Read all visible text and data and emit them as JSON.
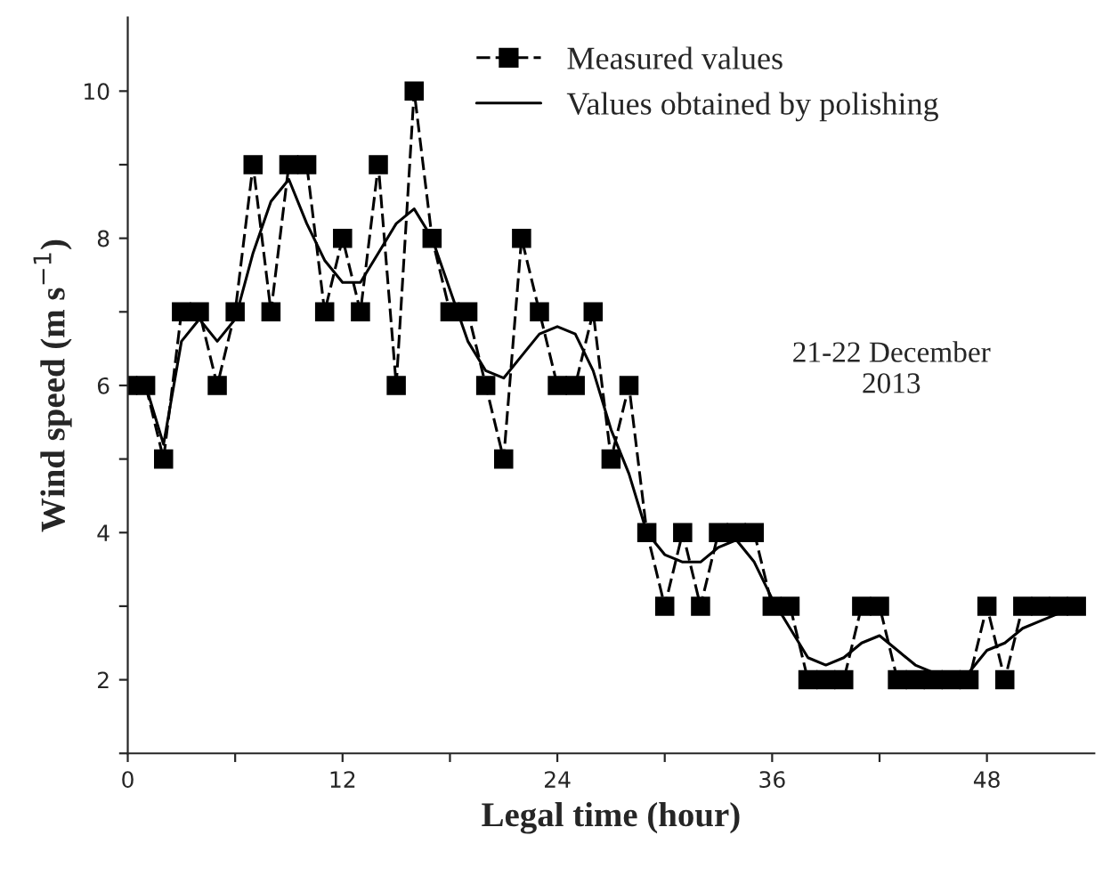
{
  "chart_data": {
    "type": "line",
    "xlabel": "Legal time (hour)",
    "ylabel": "Wind speed (m s$^{−1}$)",
    "xlim": [
      0,
      54
    ],
    "ylim": [
      1,
      11
    ],
    "xticks": [
      0,
      {
        "value": 6,
        "label": null
      },
      12,
      {
        "value": 18,
        "label": null
      },
      24,
      {
        "value": 30,
        "label": null
      },
      36,
      {
        "value": 42,
        "label": null
      },
      48
    ],
    "yticks": [
      {
        "value": 1,
        "label": null
      },
      2,
      {
        "value": 3,
        "label": null
      },
      4,
      {
        "value": 5,
        "label": null
      },
      6,
      {
        "value": 7,
        "label": null
      },
      8,
      {
        "value": 9,
        "label": null
      },
      10
    ],
    "x": [
      0,
      1,
      2,
      3,
      4,
      5,
      6,
      7,
      8,
      9,
      10,
      11,
      12,
      13,
      14,
      15,
      16,
      17,
      18,
      19,
      20,
      21,
      22,
      23,
      24,
      25,
      26,
      27,
      28,
      29,
      30,
      31,
      32,
      33,
      34,
      35,
      36,
      37,
      38,
      39,
      40,
      41,
      42,
      43,
      44,
      45,
      46,
      47,
      48,
      49,
      50,
      51,
      52,
      53
    ],
    "series": [
      {
        "name": "Measured values",
        "color": "#000000",
        "marker": "square",
        "line_style": "dashed",
        "values": [
          6,
          6,
          5,
          7,
          7,
          6,
          7,
          9,
          7,
          9,
          9,
          7,
          8,
          7,
          9,
          6,
          10,
          8,
          7,
          7,
          6,
          5,
          8,
          7,
          6,
          6,
          7,
          5,
          6,
          4,
          3,
          4,
          3,
          4,
          4,
          4,
          3,
          3,
          2,
          2,
          2,
          3,
          3,
          2,
          2,
          2,
          2,
          2,
          3,
          2,
          3,
          3,
          3,
          3
        ]
      },
      {
        "name": "Values obtained by polishing",
        "color": "#000000",
        "marker": "none",
        "line_style": "solid",
        "values": [
          6,
          6,
          5.2,
          6.6,
          6.9,
          6.6,
          6.9,
          7.8,
          8.5,
          8.8,
          8.2,
          7.7,
          7.4,
          7.4,
          7.8,
          8.2,
          8.4,
          8.0,
          7.3,
          6.6,
          6.2,
          6.1,
          6.4,
          6.7,
          6.8,
          6.7,
          6.2,
          5.4,
          4.8,
          4.0,
          3.7,
          3.6,
          3.6,
          3.8,
          3.9,
          3.6,
          3.1,
          2.7,
          2.3,
          2.2,
          2.3,
          2.5,
          2.6,
          2.4,
          2.2,
          2.1,
          2.0,
          2.1,
          2.4,
          2.5,
          2.7,
          2.8,
          2.9,
          3.0
        ]
      }
    ],
    "annotations": [
      "21-22 December\n2013"
    ],
    "legend": "top",
    "grid": false
  }
}
